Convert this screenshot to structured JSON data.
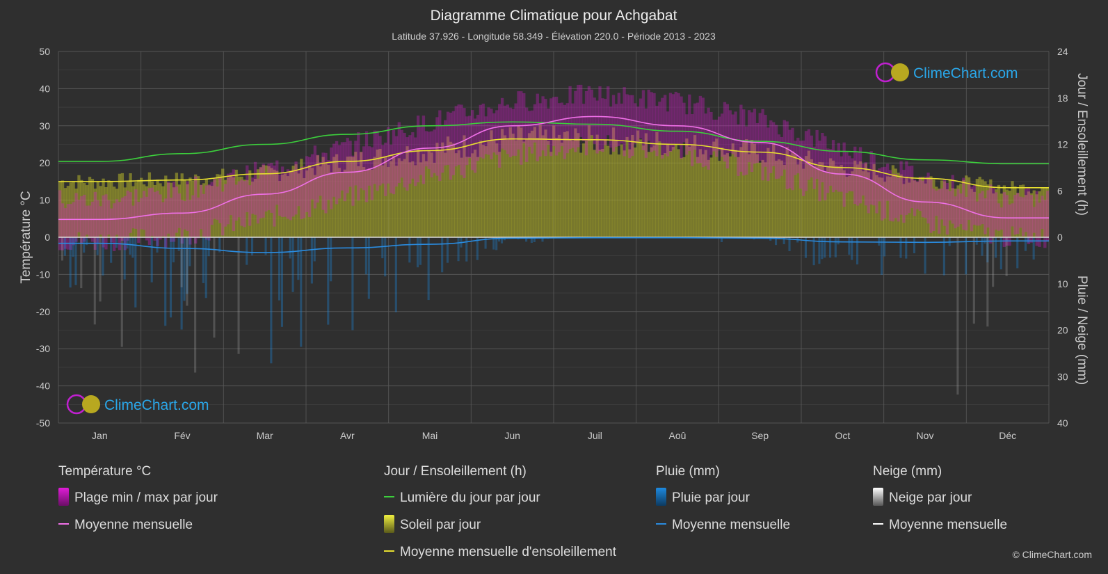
{
  "title": "Diagramme Climatique pour Achgabat",
  "subtitle": "Latitude 37.926 - Longitude 58.349 - Élévation 220.0 - Période 2013 - 2023",
  "brand": "ClimeChart.com",
  "copyright": "© ClimeChart.com",
  "colors": {
    "background": "#2f2f2f",
    "grid": "#5a5a5a",
    "temp_range": "#d01cc8",
    "temp_mean": "#f070e8",
    "daylight": "#3ccf3c",
    "sunshine_fill": "#b5b52a",
    "sunshine_mean": "#e8e030",
    "rain": "#1e8ae0",
    "rain_mean": "#2a8ce0",
    "snow": "#bbbbbb",
    "snow_mean": "#ffffff"
  },
  "chart_data": {
    "type": "area",
    "months": [
      "Jan",
      "Fév",
      "Mar",
      "Avr",
      "Mai",
      "Jun",
      "Juil",
      "Aoû",
      "Sep",
      "Oct",
      "Nov",
      "Déc"
    ],
    "left_axis": {
      "label": "Température °C",
      "range": [
        -50,
        50
      ],
      "ticks": [
        "50",
        "40",
        "30",
        "20",
        "10",
        "0",
        "-10",
        "-20",
        "-30",
        "-40",
        "-50"
      ]
    },
    "right_axis_top": {
      "label": "Jour / Ensoleillement (h)",
      "range": [
        0,
        24
      ],
      "ticks": [
        "24",
        "18",
        "12",
        "6",
        "0"
      ]
    },
    "right_axis_bottom": {
      "label": "Pluie / Neige (mm)",
      "range": [
        0,
        40
      ],
      "ticks": [
        "10",
        "20",
        "30",
        "40"
      ]
    },
    "grid": true,
    "series": [
      {
        "name": "Moyenne mensuelle",
        "group": "Température °C",
        "values": [
          4.8,
          6.5,
          11.6,
          17.5,
          24.0,
          30.0,
          32.5,
          30.0,
          25.5,
          17.0,
          9.5,
          5.2
        ]
      },
      {
        "name": "Plage min / max par jour (max)",
        "group": "Température °C",
        "values": [
          10.0,
          12.5,
          18.0,
          24.5,
          31.0,
          36.5,
          38.5,
          36.5,
          32.0,
          24.0,
          16.0,
          10.5
        ]
      },
      {
        "name": "Plage min / max par jour (min)",
        "group": "Température °C",
        "values": [
          -1.0,
          0.5,
          5.0,
          10.5,
          16.5,
          22.0,
          25.0,
          23.0,
          18.0,
          10.5,
          4.0,
          0.0
        ]
      },
      {
        "name": "Lumière du jour par jour",
        "group": "Jour / Ensoleillement (h)",
        "values": [
          9.8,
          10.8,
          12.0,
          13.3,
          14.4,
          14.9,
          14.6,
          13.7,
          12.4,
          11.1,
          10.0,
          9.5
        ]
      },
      {
        "name": "Moyenne mensuelle d'ensoleillement",
        "group": "Jour / Ensoleillement (h)",
        "values": [
          7.2,
          7.4,
          8.2,
          9.8,
          11.2,
          12.7,
          12.6,
          12.0,
          11.0,
          9.0,
          7.6,
          6.4
        ]
      },
      {
        "name": "Moyenne mensuelle",
        "group": "Pluie (mm)",
        "values": [
          1.3,
          2.4,
          3.3,
          2.3,
          1.5,
          0.2,
          0.1,
          0.1,
          0.2,
          1.0,
          1.1,
          0.8
        ]
      },
      {
        "name": "Moyenne mensuelle",
        "group": "Neige (mm)",
        "values": [
          0.1,
          0.1,
          0.0,
          0.0,
          0.0,
          0.0,
          0.0,
          0.0,
          0.0,
          0.0,
          0.0,
          0.1
        ]
      }
    ]
  },
  "legend": {
    "groups": [
      {
        "title": "Température °C",
        "items": [
          {
            "label": "Plage min / max par jour",
            "swatch": "box",
            "color": "#d01cc8"
          },
          {
            "label": "Moyenne mensuelle",
            "swatch": "line",
            "color": "#f070e8"
          }
        ]
      },
      {
        "title": "Jour / Ensoleillement (h)",
        "items": [
          {
            "label": "Lumière du jour par jour",
            "swatch": "line",
            "color": "#3ccf3c"
          },
          {
            "label": "Soleil par jour",
            "swatch": "box",
            "color": "#c8c830"
          },
          {
            "label": "Moyenne mensuelle d'ensoleillement",
            "swatch": "line",
            "color": "#e8e030"
          }
        ]
      },
      {
        "title": "Pluie (mm)",
        "items": [
          {
            "label": "Pluie par jour",
            "swatch": "box",
            "color": "#1e8ae0"
          },
          {
            "label": "Moyenne mensuelle",
            "swatch": "line",
            "color": "#2a8ce0"
          }
        ]
      },
      {
        "title": "Neige (mm)",
        "items": [
          {
            "label": "Neige par jour",
            "swatch": "box",
            "color": "#cccccc"
          },
          {
            "label": "Moyenne mensuelle",
            "swatch": "line",
            "color": "#ffffff"
          }
        ]
      }
    ]
  }
}
